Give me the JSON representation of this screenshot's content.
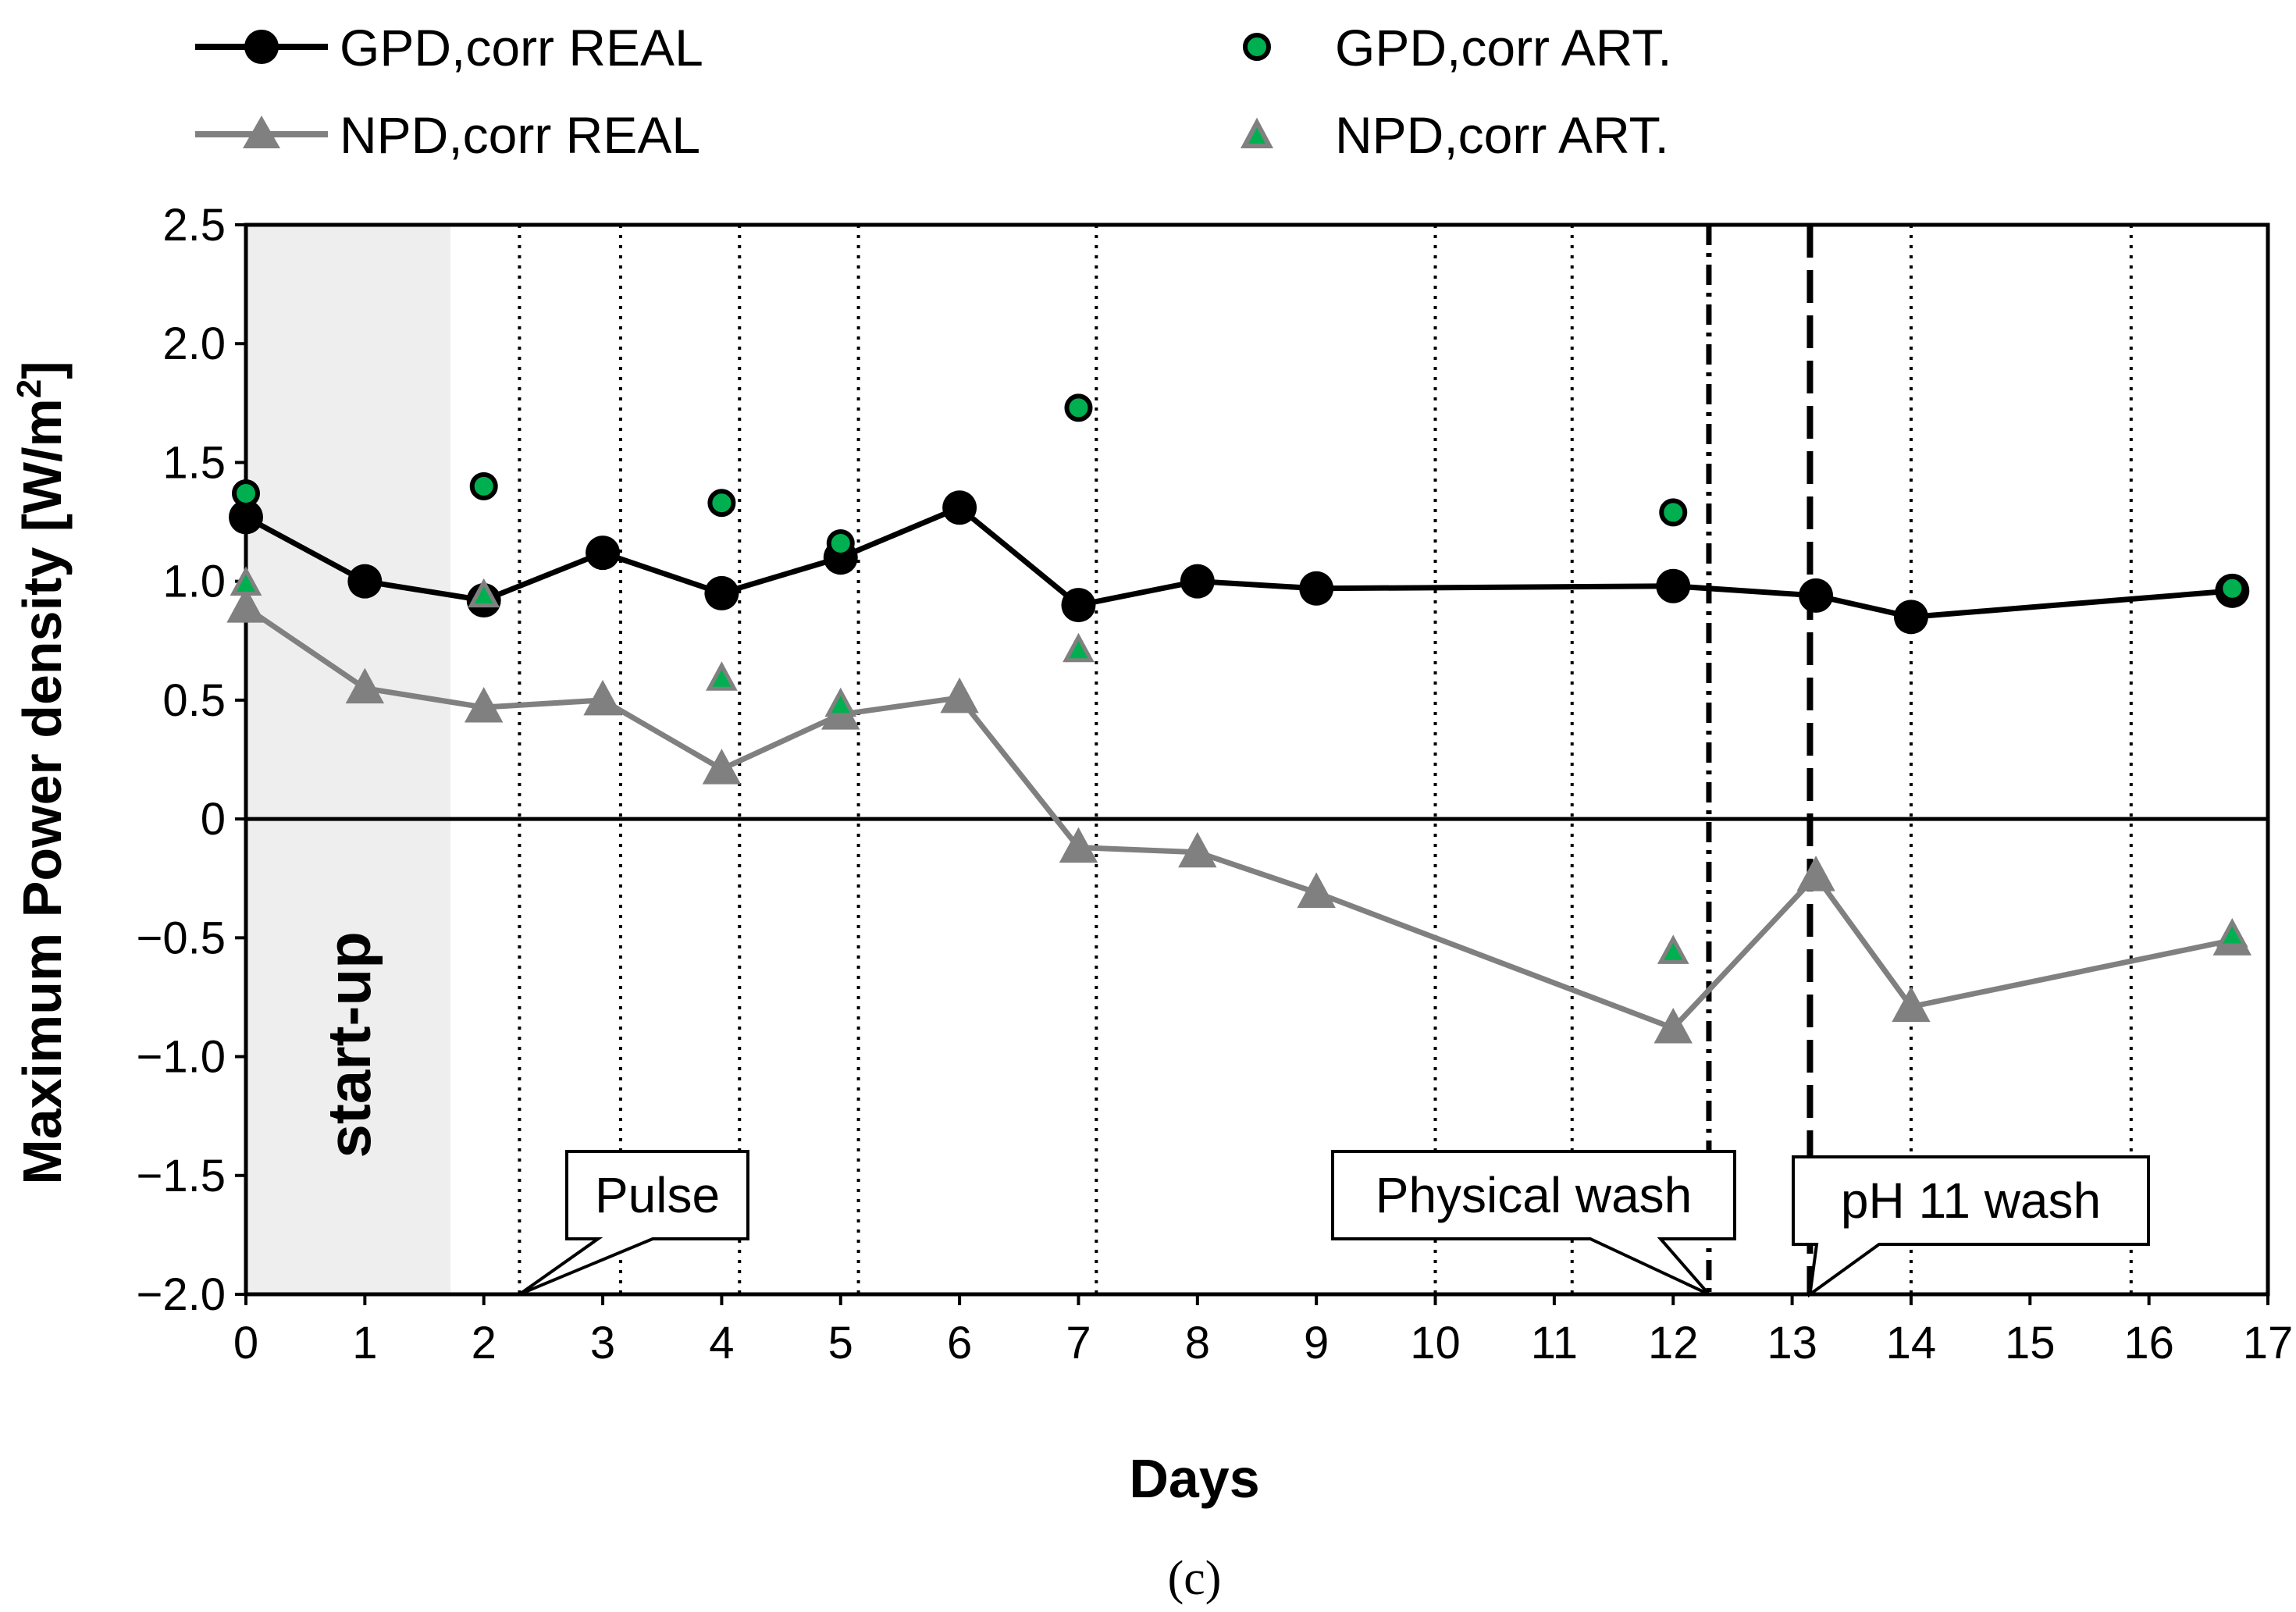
{
  "chart_data": {
    "type": "line",
    "title": "",
    "caption": "(c)",
    "xlabel": "Days",
    "ylabel": "Maximum Power density [W/m",
    "ylabel_sup": "2",
    "ylabel_end": "]",
    "xlim": [
      0,
      17
    ],
    "ylim": [
      -2.0,
      2.5
    ],
    "x_ticks": [
      0,
      1,
      2,
      3,
      4,
      5,
      6,
      7,
      8,
      9,
      10,
      11,
      12,
      13,
      14,
      15,
      16,
      17
    ],
    "x_tick_labels": [
      "0",
      "1",
      "2",
      "3",
      "4",
      "5",
      "6",
      "7",
      "8",
      "9",
      "10",
      "11",
      "12",
      "13",
      "14",
      "15",
      "16",
      "17"
    ],
    "y_ticks": [
      2.5,
      2.0,
      1.5,
      1.0,
      0.5,
      0,
      -0.5,
      -1.0,
      -1.5,
      -2.0
    ],
    "y_tick_labels": [
      "2.5",
      "2.0",
      "1.5",
      "1.0",
      "0.5",
      "0",
      "−0.5",
      "−1.0",
      "−1.5",
      "−2.0"
    ],
    "legend_position": "top",
    "series": [
      {
        "name": "GPD,corr REAL",
        "style": "line-circle",
        "color": "#000000",
        "x": [
          0,
          1,
          2,
          3,
          4,
          5,
          6,
          7,
          8,
          9,
          12,
          13.2,
          14,
          16.7
        ],
        "y": [
          1.27,
          1.0,
          0.92,
          1.12,
          0.95,
          1.1,
          1.31,
          0.9,
          1.0,
          0.97,
          0.98,
          0.94,
          0.85,
          0.96
        ]
      },
      {
        "name": "NPD,corr REAL",
        "style": "line-triangle",
        "color": "#808080",
        "x": [
          0,
          1,
          2,
          3,
          4,
          5,
          6,
          7,
          8,
          9,
          12,
          13.2,
          14,
          16.7
        ],
        "y": [
          0.89,
          0.55,
          0.47,
          0.5,
          0.21,
          0.44,
          0.51,
          -0.12,
          -0.14,
          -0.31,
          -0.88,
          -0.24,
          -0.79,
          -0.51
        ]
      },
      {
        "name": "GPD,corr ART.",
        "style": "marker-circle",
        "color": "#00b050",
        "x": [
          0,
          2,
          4,
          5,
          7,
          12,
          16.7
        ],
        "y": [
          1.37,
          1.4,
          1.33,
          1.16,
          1.73,
          1.29,
          0.97
        ]
      },
      {
        "name": "NPD,corr ART.",
        "style": "marker-triangle",
        "color": "#00b050",
        "x": [
          0,
          2,
          4,
          5,
          7,
          12,
          16.7
        ],
        "y": [
          0.99,
          0.94,
          0.59,
          0.48,
          0.71,
          -0.56,
          -0.49
        ]
      }
    ],
    "shaded_region": {
      "label": "start-up",
      "x": [
        0,
        1.72
      ],
      "color": "#eeeeee"
    },
    "vertical_lines": [
      {
        "x": 2.3,
        "style": "dotted"
      },
      {
        "x": 3.15,
        "style": "dotted"
      },
      {
        "x": 4.15,
        "style": "dotted"
      },
      {
        "x": 5.15,
        "style": "dotted"
      },
      {
        "x": 7.15,
        "style": "dotted"
      },
      {
        "x": 10.0,
        "style": "dotted"
      },
      {
        "x": 11.15,
        "style": "dotted"
      },
      {
        "x": 12.3,
        "style": "dash-dot"
      },
      {
        "x": 13.15,
        "style": "dashed"
      },
      {
        "x": 14.0,
        "style": "dotted"
      },
      {
        "x": 15.85,
        "style": "dotted"
      }
    ],
    "annotations": [
      {
        "text": "Pulse",
        "target_x": 2.3
      },
      {
        "text": "Physical wash",
        "target_x": 12.3
      },
      {
        "text": "pH 11 wash",
        "target_x": 13.15
      }
    ]
  }
}
